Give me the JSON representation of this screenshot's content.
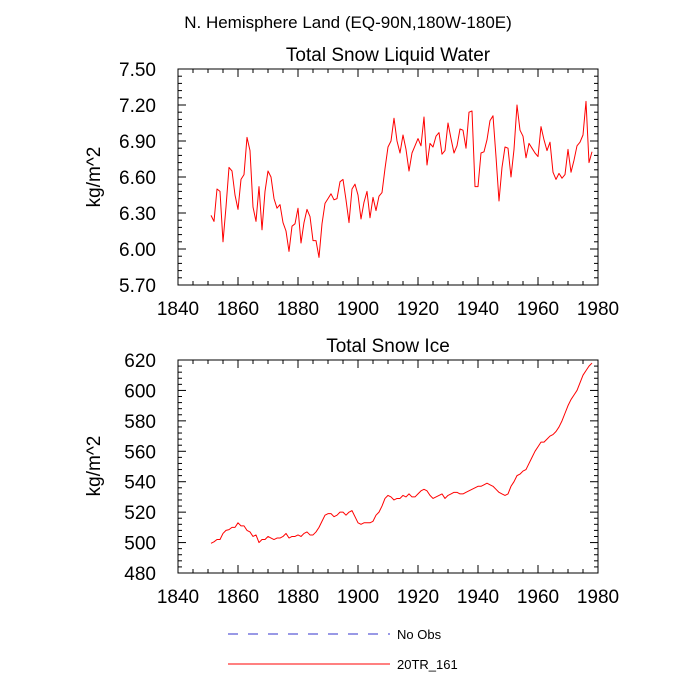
{
  "suptitle": "N. Hemisphere Land (EQ-90N,180W-180E)",
  "chart_data": [
    {
      "type": "line",
      "title": "Total Snow Liquid Water",
      "xlabel": "",
      "ylabel": "kg/m^2",
      "xlim": [
        1840,
        1980
      ],
      "ylim": [
        5.7,
        7.5
      ],
      "xticks": [
        1840,
        1860,
        1880,
        1900,
        1920,
        1940,
        1960,
        1980
      ],
      "xtick_labels": [
        "1840",
        "1860",
        "1880",
        "1900",
        "1920",
        "1940",
        "1960",
        "1980"
      ],
      "yticks": [
        5.7,
        6.0,
        6.3,
        6.6,
        6.9,
        7.2,
        7.5
      ],
      "ytick_labels": [
        "5.70",
        "6.00",
        "6.30",
        "6.60",
        "6.90",
        "7.20",
        "7.50"
      ],
      "series": [
        {
          "name": "20TR_161",
          "color": "#ff0000",
          "x": [
            1851,
            1852,
            1853,
            1854,
            1855,
            1856,
            1857,
            1858,
            1859,
            1860,
            1861,
            1862,
            1863,
            1864,
            1865,
            1866,
            1867,
            1868,
            1869,
            1870,
            1871,
            1872,
            1873,
            1874,
            1875,
            1876,
            1877,
            1878,
            1879,
            1880,
            1881,
            1882,
            1883,
            1884,
            1885,
            1886,
            1887,
            1888,
            1889,
            1890,
            1891,
            1892,
            1893,
            1894,
            1895,
            1896,
            1897,
            1898,
            1899,
            1900,
            1901,
            1902,
            1903,
            1904,
            1905,
            1906,
            1907,
            1908,
            1909,
            1910,
            1911,
            1912,
            1913,
            1914,
            1915,
            1916,
            1917,
            1918,
            1919,
            1920,
            1921,
            1922,
            1923,
            1924,
            1925,
            1926,
            1927,
            1928,
            1929,
            1930,
            1931,
            1932,
            1933,
            1934,
            1935,
            1936,
            1937,
            1938,
            1939,
            1940,
            1941,
            1942,
            1943,
            1944,
            1945,
            1946,
            1947,
            1948,
            1949,
            1950,
            1951,
            1952,
            1953,
            1954,
            1955,
            1956,
            1957,
            1958,
            1959,
            1960,
            1961,
            1962,
            1963,
            1964,
            1965,
            1966,
            1967,
            1968,
            1969,
            1970,
            1971,
            1972,
            1973,
            1974,
            1975,
            1976,
            1977,
            1978
          ],
          "y": [
            6.28,
            6.23,
            6.5,
            6.48,
            6.06,
            6.35,
            6.68,
            6.65,
            6.45,
            6.33,
            6.58,
            6.62,
            6.93,
            6.82,
            6.35,
            6.23,
            6.52,
            6.16,
            6.48,
            6.65,
            6.6,
            6.42,
            6.34,
            6.37,
            6.22,
            6.15,
            5.98,
            6.19,
            6.21,
            6.34,
            6.05,
            6.22,
            6.33,
            6.27,
            6.07,
            6.07,
            5.93,
            6.21,
            6.38,
            6.42,
            6.46,
            6.41,
            6.42,
            6.56,
            6.58,
            6.41,
            6.22,
            6.5,
            6.54,
            6.45,
            6.25,
            6.39,
            6.48,
            6.26,
            6.43,
            6.32,
            6.44,
            6.47,
            6.67,
            6.85,
            6.9,
            7.09,
            6.9,
            6.8,
            6.95,
            6.83,
            6.65,
            6.8,
            6.86,
            6.92,
            6.86,
            7.1,
            6.7,
            6.88,
            6.85,
            6.94,
            6.97,
            6.79,
            6.82,
            7.05,
            6.92,
            6.8,
            6.86,
            7.0,
            6.99,
            6.84,
            7.14,
            7.15,
            6.52,
            6.52,
            6.8,
            6.81,
            6.91,
            7.07,
            7.11,
            6.77,
            6.4,
            6.68,
            6.85,
            6.84,
            6.6,
            6.83,
            7.2,
            6.99,
            6.94,
            6.76,
            6.88,
            6.84,
            6.8,
            6.77,
            7.02,
            6.91,
            6.82,
            6.89,
            6.64,
            6.58,
            6.63,
            6.59,
            6.62,
            6.83,
            6.64,
            6.74,
            6.86,
            6.89,
            6.95,
            7.23,
            6.72,
            6.81
          ]
        },
        {
          "name": "No Obs",
          "color": "#3333cc",
          "x": [],
          "y": []
        }
      ]
    },
    {
      "type": "line",
      "title": "Total Snow Ice",
      "xlabel": "",
      "ylabel": "kg/m^2",
      "xlim": [
        1840,
        1980
      ],
      "ylim": [
        480,
        620
      ],
      "xticks": [
        1840,
        1860,
        1880,
        1900,
        1920,
        1940,
        1960,
        1980
      ],
      "xtick_labels": [
        "1840",
        "1860",
        "1880",
        "1900",
        "1920",
        "1940",
        "1960",
        "1980"
      ],
      "yticks": [
        480,
        500,
        520,
        540,
        560,
        580,
        600,
        620
      ],
      "ytick_labels": [
        "480",
        "500",
        "520",
        "540",
        "560",
        "580",
        "600",
        "620"
      ],
      "series": [
        {
          "name": "20TR_161",
          "color": "#ff0000",
          "x": [
            1851,
            1852,
            1853,
            1854,
            1855,
            1856,
            1857,
            1858,
            1859,
            1860,
            1861,
            1862,
            1863,
            1864,
            1865,
            1866,
            1867,
            1868,
            1869,
            1870,
            1871,
            1872,
            1873,
            1874,
            1875,
            1876,
            1877,
            1878,
            1879,
            1880,
            1881,
            1882,
            1883,
            1884,
            1885,
            1886,
            1887,
            1888,
            1889,
            1890,
            1891,
            1892,
            1893,
            1894,
            1895,
            1896,
            1897,
            1898,
            1899,
            1900,
            1901,
            1902,
            1903,
            1904,
            1905,
            1906,
            1907,
            1908,
            1909,
            1910,
            1911,
            1912,
            1913,
            1914,
            1915,
            1916,
            1917,
            1918,
            1919,
            1920,
            1921,
            1922,
            1923,
            1924,
            1925,
            1926,
            1927,
            1928,
            1929,
            1930,
            1931,
            1932,
            1933,
            1934,
            1935,
            1936,
            1937,
            1938,
            1939,
            1940,
            1941,
            1942,
            1943,
            1944,
            1945,
            1946,
            1947,
            1948,
            1949,
            1950,
            1951,
            1952,
            1953,
            1954,
            1955,
            1956,
            1957,
            1958,
            1959,
            1960,
            1961,
            1962,
            1963,
            1964,
            1965,
            1966,
            1967,
            1968,
            1969,
            1970,
            1971,
            1972,
            1973,
            1974,
            1975,
            1976,
            1977,
            1978
          ],
          "y": [
            499.5,
            500.5,
            502,
            502,
            506,
            508,
            508.5,
            510,
            510,
            513,
            511,
            511,
            508,
            507,
            504,
            505,
            500,
            502,
            502,
            504,
            503,
            502,
            503,
            503,
            504,
            506,
            503,
            504,
            504,
            505,
            504,
            506,
            507,
            505,
            505,
            507,
            510,
            514,
            518,
            519,
            519,
            517,
            518,
            520,
            520,
            518,
            520,
            521,
            517,
            513,
            512,
            513,
            513,
            513,
            514,
            518,
            520,
            524,
            529,
            531,
            530,
            528,
            529,
            529,
            531,
            530,
            532,
            530,
            530,
            532,
            534,
            535,
            534,
            531,
            529,
            530,
            531,
            532,
            529,
            531,
            532,
            533,
            533,
            532,
            532,
            533,
            534,
            535,
            536,
            537,
            537,
            538,
            539,
            538,
            537,
            535,
            533,
            532,
            531,
            532,
            537,
            540,
            544,
            545,
            547,
            548,
            552,
            556,
            560,
            563,
            566,
            566,
            568,
            570,
            571,
            573,
            576,
            580,
            585,
            590,
            594,
            597,
            600,
            605,
            610,
            613,
            616,
            618
          ]
        }
      ]
    }
  ],
  "legend": {
    "items": [
      {
        "label": "No Obs",
        "color": "#3333cc",
        "style": "dashed"
      },
      {
        "label": "20TR_161",
        "color": "#ff0000",
        "style": "solid"
      }
    ]
  }
}
